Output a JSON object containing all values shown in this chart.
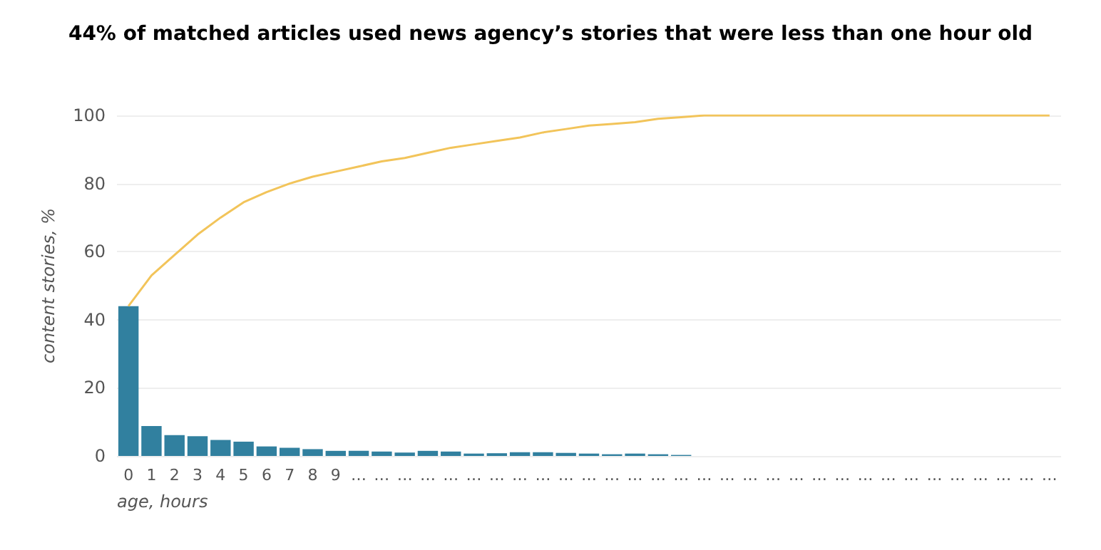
{
  "chart_data": {
    "type": "bar",
    "title": "44% of matched articles used news agency’s stories that were less than one hour old",
    "xlabel": "age, hours",
    "ylabel": "content stories, %",
    "categories": [
      "0",
      "1",
      "2",
      "3",
      "4",
      "5",
      "6",
      "7",
      "8",
      "9",
      "…",
      "…",
      "…",
      "…",
      "…",
      "…",
      "…",
      "…",
      "…",
      "…",
      "…",
      "…",
      "…",
      "…",
      "…",
      "…",
      "…",
      "…",
      "…",
      "…",
      "…",
      "…",
      "…",
      "…",
      "…",
      "…",
      "…",
      "…",
      "…",
      "…",
      "…"
    ],
    "series": [
      {
        "color": "#31809f",
        "values": [
          44,
          8.8,
          6.1,
          5.8,
          4.7,
          4.2,
          2.8,
          2.4,
          2,
          1.5,
          1.5,
          1.3,
          1,
          1.5,
          1.3,
          0.7,
          0.8,
          1.1,
          1.1,
          0.9,
          0.7,
          0.5,
          0.7,
          0.5,
          0.3,
          0,
          0,
          0,
          0,
          0,
          0,
          0,
          0,
          0,
          0,
          0,
          0,
          0,
          0,
          0,
          0
        ]
      },
      {
        "type": "line",
        "color": "#f2c45a",
        "values": [
          44,
          53,
          59,
          65,
          70,
          74.5,
          77.5,
          80,
          82,
          83.5,
          85,
          86.5,
          87.5,
          89,
          90.5,
          91.5,
          92.5,
          93.5,
          95,
          96,
          97,
          97.5,
          98,
          99,
          99.5,
          100,
          100,
          100,
          100,
          100,
          100,
          100,
          100,
          100,
          100,
          100,
          100,
          100,
          100,
          100,
          100
        ]
      }
    ],
    "ylim": [
      0,
      100
    ],
    "yticks": [
      0,
      20,
      40,
      60,
      80,
      100
    ],
    "grid": "y",
    "marker": "none"
  }
}
